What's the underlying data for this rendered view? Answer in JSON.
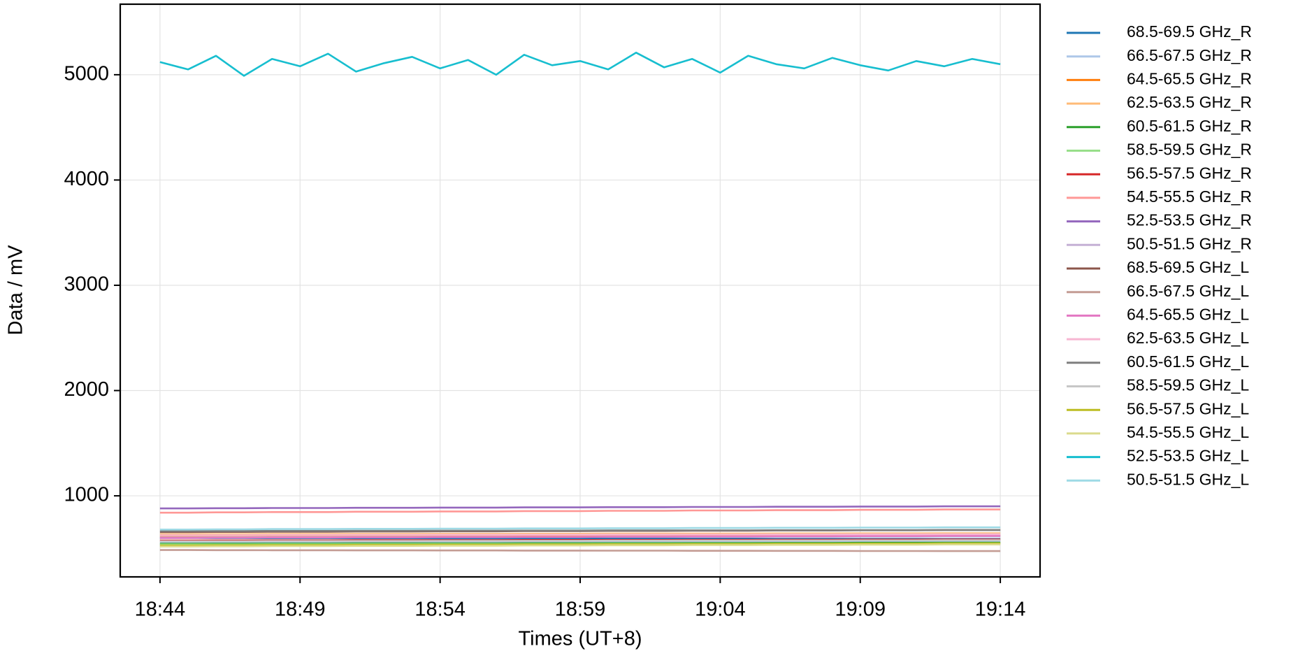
{
  "chart_data": {
    "type": "line",
    "x_label": "Times (UT+8)",
    "y_label": "Data / mV",
    "x": [
      "18:44",
      null,
      null,
      null,
      null,
      "18:49",
      null,
      null,
      null,
      null,
      "18:54",
      null,
      null,
      null,
      null,
      "18:59",
      null,
      null,
      null,
      null,
      "19:04",
      null,
      null,
      null,
      null,
      "19:09",
      null,
      null,
      null,
      null,
      "19:14"
    ],
    "ylim": [
      230,
      5670
    ],
    "yticks": [
      1000,
      2000,
      3000,
      4000,
      5000
    ],
    "grid": true,
    "legend": "right",
    "series": [
      {
        "name": "68.5-69.5 GHz_R",
        "color": "#1f77b4",
        "values": [
          600,
          600,
          599,
          599,
          598,
          598,
          598,
          597,
          597,
          597,
          596,
          596,
          596,
          595,
          595,
          595,
          594,
          594,
          594,
          593,
          593,
          593,
          592,
          592,
          592,
          591,
          591,
          591,
          590,
          590,
          590
        ]
      },
      {
        "name": "66.5-67.5 GHz_R",
        "color": "#aec7e8",
        "values": [
          555,
          555,
          556,
          556,
          557,
          557,
          557,
          558,
          558,
          558,
          559,
          559,
          559,
          560,
          560,
          560,
          561,
          561,
          561,
          562,
          562,
          562,
          563,
          563,
          563,
          564,
          564,
          564,
          565,
          565,
          565
        ]
      },
      {
        "name": "64.5-65.5 GHz_R",
        "color": "#ff7f0e",
        "values": [
          615,
          615,
          616,
          616,
          617,
          617,
          617,
          618,
          618,
          618,
          619,
          619,
          619,
          620,
          620,
          620,
          621,
          621,
          621,
          622,
          622,
          622,
          623,
          623,
          623,
          624,
          624,
          624,
          625,
          625,
          625
        ]
      },
      {
        "name": "62.5-63.5 GHz_R",
        "color": "#ffbb78",
        "values": [
          635,
          635,
          636,
          636,
          637,
          637,
          637,
          638,
          638,
          638,
          639,
          639,
          639,
          640,
          640,
          640,
          641,
          641,
          641,
          642,
          642,
          642,
          643,
          643,
          643,
          644,
          644,
          644,
          645,
          645,
          645
        ]
      },
      {
        "name": "60.5-61.5 GHz_R",
        "color": "#2ca02c",
        "values": [
          545,
          545,
          546,
          546,
          547,
          547,
          547,
          548,
          548,
          548,
          549,
          549,
          549,
          550,
          550,
          550,
          551,
          551,
          551,
          552,
          552,
          552,
          553,
          553,
          553,
          554,
          554,
          554,
          555,
          555,
          555
        ]
      },
      {
        "name": "58.5-59.5 GHz_R",
        "color": "#98df8a",
        "values": [
          538,
          538,
          539,
          539,
          540,
          540,
          540,
          541,
          541,
          541,
          542,
          542,
          542,
          543,
          543,
          543,
          544,
          544,
          544,
          545,
          545,
          545,
          546,
          546,
          546,
          547,
          547,
          547,
          548,
          548,
          548
        ]
      },
      {
        "name": "56.5-57.5 GHz_R",
        "color": "#d62728",
        "values": [
          575,
          575,
          576,
          576,
          577,
          577,
          577,
          578,
          578,
          578,
          579,
          579,
          579,
          580,
          580,
          580,
          581,
          581,
          581,
          582,
          582,
          582,
          583,
          583,
          583,
          584,
          584,
          584,
          585,
          585,
          585
        ]
      },
      {
        "name": "54.5-55.5 GHz_R",
        "color": "#ff9896",
        "values": [
          840,
          840,
          843,
          843,
          846,
          846,
          846,
          849,
          849,
          849,
          852,
          852,
          852,
          855,
          855,
          855,
          858,
          858,
          858,
          861,
          861,
          861,
          864,
          864,
          864,
          867,
          867,
          867,
          870,
          870,
          870
        ]
      },
      {
        "name": "52.5-53.5 GHz_R",
        "color": "#9467bd",
        "values": [
          880,
          880,
          882,
          882,
          884,
          884,
          884,
          886,
          886,
          886,
          888,
          888,
          888,
          890,
          890,
          890,
          892,
          892,
          892,
          894,
          894,
          894,
          896,
          896,
          896,
          898,
          898,
          898,
          900,
          900,
          900
        ]
      },
      {
        "name": "50.5-51.5 GHz_R",
        "color": "#c5b0d5",
        "values": [
          605,
          605,
          606,
          606,
          607,
          607,
          607,
          608,
          608,
          608,
          609,
          609,
          609,
          610,
          610,
          610,
          611,
          611,
          611,
          612,
          612,
          612,
          613,
          613,
          613,
          614,
          614,
          614,
          615,
          615,
          615
        ]
      },
      {
        "name": "68.5-69.5 GHz_L",
        "color": "#8c564b",
        "values": [
          655,
          655,
          657,
          657,
          659,
          659,
          659,
          661,
          661,
          661,
          663,
          663,
          663,
          665,
          665,
          665,
          667,
          667,
          667,
          669,
          669,
          669,
          671,
          671,
          671,
          673,
          673,
          673,
          675,
          675,
          675
        ]
      },
      {
        "name": "66.5-67.5 GHz_L",
        "color": "#c49c94",
        "values": [
          485,
          485,
          484,
          484,
          483,
          483,
          483,
          482,
          482,
          482,
          481,
          481,
          481,
          480,
          480,
          480,
          479,
          479,
          479,
          478,
          478,
          478,
          477,
          477,
          477,
          476,
          476,
          476,
          475,
          475,
          475
        ]
      },
      {
        "name": "64.5-65.5 GHz_L",
        "color": "#e377c2",
        "values": [
          600,
          600,
          602,
          602,
          604,
          604,
          604,
          606,
          606,
          606,
          608,
          608,
          608,
          610,
          610,
          610,
          612,
          612,
          612,
          614,
          614,
          614,
          616,
          616,
          616,
          618,
          618,
          618,
          620,
          620,
          620
        ]
      },
      {
        "name": "62.5-63.5 GHz_L",
        "color": "#f7b6d2",
        "values": [
          625,
          625,
          626,
          626,
          627,
          627,
          627,
          628,
          628,
          628,
          629,
          629,
          629,
          630,
          630,
          630,
          631,
          631,
          631,
          632,
          632,
          632,
          633,
          633,
          633,
          634,
          634,
          634,
          635,
          635,
          635
        ]
      },
      {
        "name": "60.5-61.5 GHz_L",
        "color": "#7f7f7f",
        "values": [
          665,
          665,
          666,
          666,
          667,
          667,
          667,
          668,
          668,
          668,
          669,
          669,
          669,
          670,
          670,
          670,
          671,
          671,
          671,
          672,
          672,
          672,
          673,
          673,
          673,
          674,
          674,
          674,
          675,
          675,
          675
        ]
      },
      {
        "name": "58.5-59.5 GHz_L",
        "color": "#c7c7c7",
        "values": [
          568,
          568,
          569,
          569,
          570,
          570,
          570,
          571,
          571,
          571,
          572,
          572,
          572,
          573,
          573,
          573,
          574,
          574,
          574,
          575,
          575,
          575,
          576,
          576,
          576,
          577,
          577,
          577,
          578,
          578,
          578
        ]
      },
      {
        "name": "56.5-57.5 GHz_L",
        "color": "#bcbd22",
        "values": [
          528,
          528,
          530,
          530,
          532,
          532,
          532,
          534,
          534,
          534,
          536,
          536,
          536,
          538,
          538,
          538,
          540,
          540,
          540,
          542,
          542,
          542,
          544,
          544,
          544,
          546,
          546,
          546,
          548,
          548,
          548
        ]
      },
      {
        "name": "54.5-55.5 GHz_L",
        "color": "#dbdb8d",
        "values": [
          518,
          518,
          520,
          520,
          522,
          522,
          522,
          524,
          524,
          524,
          526,
          526,
          526,
          528,
          528,
          528,
          530,
          530,
          530,
          532,
          532,
          532,
          534,
          534,
          534,
          536,
          536,
          536,
          538,
          538,
          538
        ]
      },
      {
        "name": "52.5-53.5 GHz_L",
        "color": "#17becf",
        "values": [
          5120,
          5050,
          5180,
          4990,
          5150,
          5080,
          5200,
          5030,
          5110,
          5170,
          5060,
          5140,
          5000,
          5190,
          5090,
          5130,
          5050,
          5210,
          5070,
          5150,
          5020,
          5180,
          5100,
          5060,
          5160,
          5090,
          5040,
          5130,
          5080,
          5150,
          5100
        ]
      },
      {
        "name": "50.5-51.5 GHz_L",
        "color": "#9edae5",
        "values": [
          680,
          680,
          682,
          682,
          684,
          684,
          684,
          686,
          686,
          686,
          688,
          688,
          688,
          690,
          690,
          690,
          692,
          692,
          692,
          694,
          694,
          694,
          696,
          696,
          696,
          698,
          698,
          698,
          700,
          700,
          700
        ]
      }
    ]
  }
}
